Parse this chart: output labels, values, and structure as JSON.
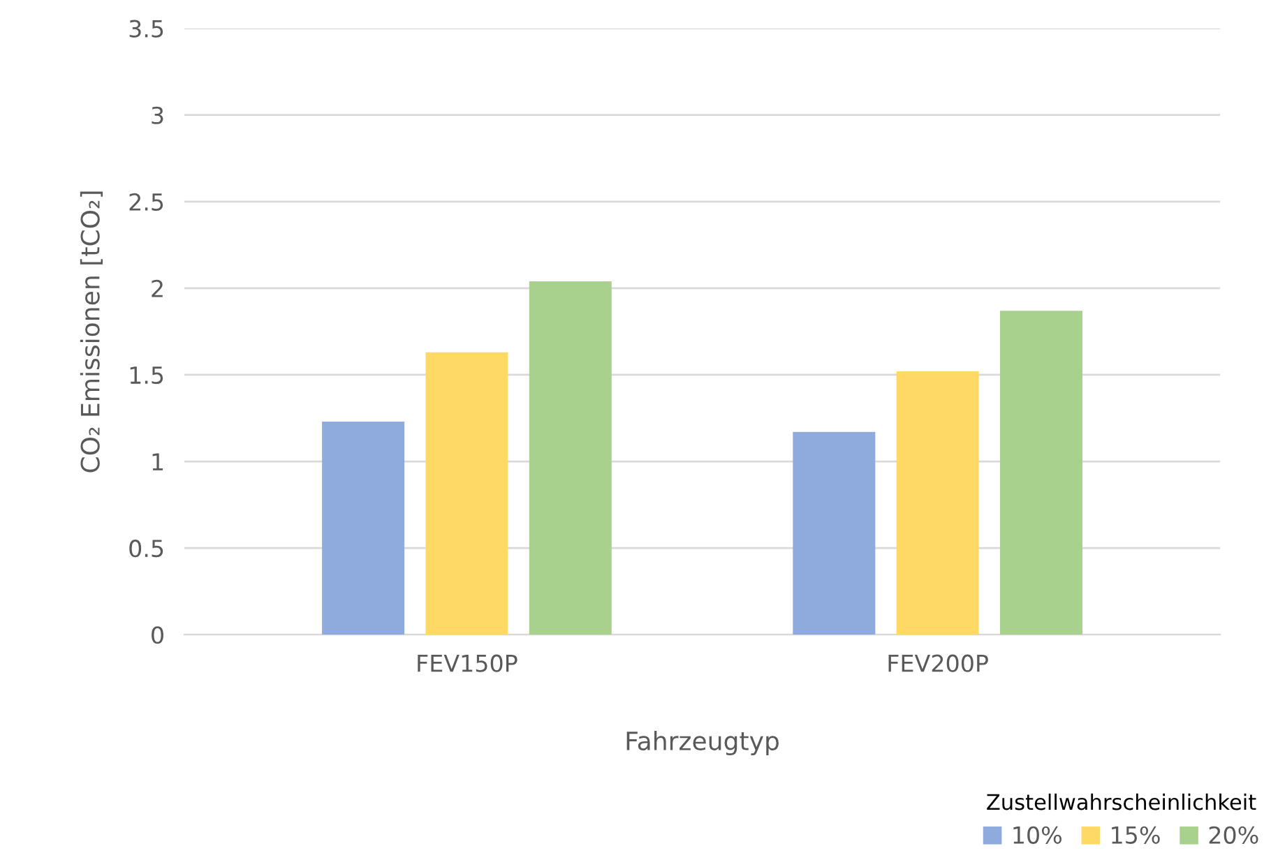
{
  "chart_data": {
    "type": "bar",
    "xlabel": "Fahrzeugtyp",
    "ylabel": "CO₂ Emissionen [tCO₂]",
    "categories": [
      "FEV150P",
      "FEV200P"
    ],
    "series": [
      {
        "name": "10%",
        "color": "#8faadc",
        "values": [
          1.23,
          1.17
        ]
      },
      {
        "name": "15%",
        "color": "#ffd966",
        "values": [
          1.63,
          1.52
        ]
      },
      {
        "name": "20%",
        "color": "#a9d18e",
        "values": [
          2.04,
          1.87
        ]
      }
    ],
    "legend_title": "Zustellwahrscheinlichkeit",
    "legend": "bottom right",
    "ylim": [
      0,
      3.5
    ],
    "yticks": [
      0,
      0.5,
      1,
      1.5,
      2,
      2.5,
      3,
      3.5
    ],
    "grid": "y"
  }
}
